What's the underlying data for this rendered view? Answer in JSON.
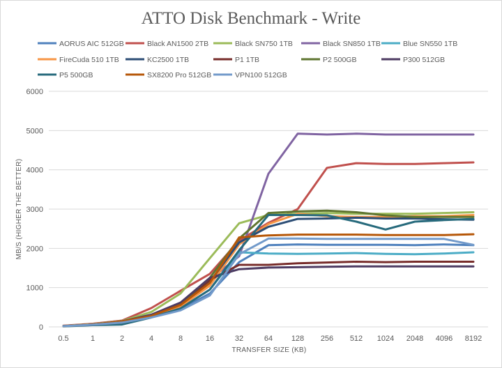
{
  "chart_data": {
    "type": "line",
    "title": "ATTO Disk Benchmark - Write",
    "xlabel": "TRANSFER SIZE (KB)",
    "ylabel": "MB/S (HIGHER THE BETTER)",
    "categories": [
      "0.5",
      "1",
      "2",
      "4",
      "8",
      "16",
      "32",
      "64",
      "128",
      "256",
      "512",
      "1024",
      "2048",
      "4096",
      "8192"
    ],
    "ylim": [
      0,
      6000
    ],
    "yticks": [
      "0",
      "1000",
      "2000",
      "3000",
      "4000",
      "5000",
      "6000"
    ],
    "grid": true,
    "legend_position": "top",
    "series": [
      {
        "name": "AORUS AIC 512GB",
        "color": "#4f81bd",
        "values": [
          20,
          60,
          120,
          250,
          450,
          850,
          1650,
          2080,
          2100,
          2090,
          2090,
          2090,
          2080,
          2100,
          2080
        ]
      },
      {
        "name": "Black AN1500 2TB",
        "color": "#c0504d",
        "values": [
          30,
          80,
          160,
          480,
          920,
          1350,
          2200,
          2650,
          3000,
          4050,
          4170,
          4150,
          4150,
          4170,
          4190
        ]
      },
      {
        "name": "Black SN750 1TB",
        "color": "#9bbb59",
        "values": [
          25,
          70,
          150,
          380,
          850,
          1750,
          2640,
          2850,
          2880,
          2900,
          2880,
          2880,
          2880,
          2900,
          2920
        ]
      },
      {
        "name": "Black SN850 1TB",
        "color": "#8064a2",
        "values": [
          20,
          60,
          140,
          280,
          550,
          1200,
          1800,
          3900,
          4920,
          4900,
          4920,
          4900,
          4900,
          4900,
          4900
        ]
      },
      {
        "name": "Blue SN550 1TB",
        "color": "#4bacc6",
        "values": [
          20,
          55,
          110,
          250,
          480,
          950,
          1900,
          1870,
          1860,
          1870,
          1880,
          1860,
          1850,
          1870,
          1900
        ]
      },
      {
        "name": "FireCuda 510 1TB",
        "color": "#f79646",
        "values": [
          20,
          60,
          130,
          260,
          520,
          1050,
          2100,
          2620,
          2880,
          2820,
          2800,
          2800,
          2820,
          2820,
          2850
        ]
      },
      {
        "name": "KC2500 1TB",
        "color": "#2c4d75",
        "values": [
          20,
          60,
          140,
          290,
          570,
          1150,
          2150,
          2550,
          2750,
          2760,
          2780,
          2760,
          2760,
          2740,
          2730
        ]
      },
      {
        "name": "P1 1TB",
        "color": "#772c2a",
        "values": [
          20,
          60,
          140,
          300,
          580,
          1200,
          1580,
          1580,
          1620,
          1640,
          1660,
          1650,
          1660,
          1660,
          1660
        ]
      },
      {
        "name": "P2 500GB",
        "color": "#5f7530",
        "values": [
          20,
          60,
          140,
          300,
          600,
          1250,
          2250,
          2900,
          2940,
          2960,
          2920,
          2840,
          2800,
          2800,
          2800
        ]
      },
      {
        "name": "P300 512GB",
        "color": "#4d3b62",
        "values": [
          20,
          60,
          140,
          310,
          620,
          1250,
          1470,
          1510,
          1520,
          1530,
          1540,
          1540,
          1540,
          1540,
          1540
        ]
      },
      {
        "name": "P5 500GB",
        "color": "#276a7c",
        "values": [
          15,
          45,
          60,
          240,
          470,
          950,
          1950,
          2850,
          2850,
          2840,
          2680,
          2480,
          2680,
          2720,
          2750
        ]
      },
      {
        "name": "SX8200 Pro 512GB",
        "color": "#b65708",
        "values": [
          20,
          60,
          140,
          280,
          560,
          1120,
          2280,
          2330,
          2350,
          2350,
          2350,
          2340,
          2340,
          2340,
          2360
        ]
      },
      {
        "name": "VPN100 512GB",
        "color": "#729aca",
        "values": [
          20,
          55,
          110,
          240,
          420,
          800,
          1850,
          2250,
          2250,
          2240,
          2240,
          2240,
          2240,
          2240,
          2090
        ]
      }
    ]
  }
}
